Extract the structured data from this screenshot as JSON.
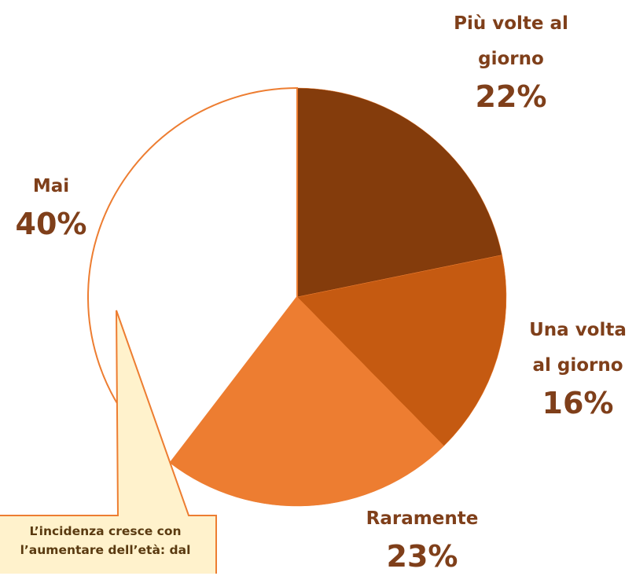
{
  "chart_data": {
    "type": "pie",
    "categories": [
      "Più volte al giorno",
      "Una volta al giorno",
      "Raramente",
      "Mai"
    ],
    "values": [
      22,
      16,
      23,
      40
    ],
    "value_labels": [
      "22%",
      "16%",
      "23%",
      "40%"
    ],
    "colors": [
      "#843c0c",
      "#c55a11",
      "#ed7d31",
      "#ffffff"
    ],
    "annotation": "L’incidenza cresce con l’aumentare dell’età: dal"
  }
}
